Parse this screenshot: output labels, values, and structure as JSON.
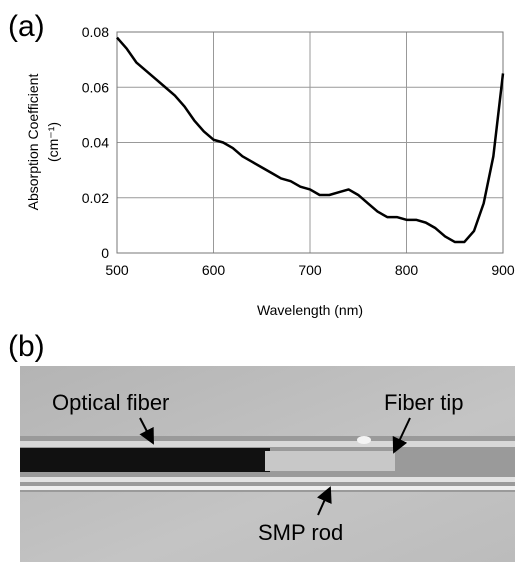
{
  "panel_labels": [
    "(a)",
    "(b)"
  ],
  "chart_data": {
    "type": "line",
    "xlabel": "Wavelength (nm)",
    "ylabel": "Absorption Coefficient",
    "ylabel_unit": "(cm⁻¹)",
    "x": [
      500,
      510,
      520,
      530,
      540,
      550,
      560,
      570,
      580,
      590,
      600,
      610,
      620,
      630,
      640,
      650,
      660,
      670,
      680,
      690,
      700,
      710,
      720,
      730,
      740,
      750,
      760,
      770,
      780,
      790,
      800,
      810,
      820,
      830,
      840,
      850,
      860,
      870,
      880,
      890,
      900
    ],
    "series": [
      {
        "name": null,
        "color": "#000000",
        "values": [
          0.078,
          0.074,
          0.069,
          0.066,
          0.063,
          0.06,
          0.057,
          0.053,
          0.048,
          0.044,
          0.041,
          0.04,
          0.038,
          0.035,
          0.033,
          0.031,
          0.029,
          0.027,
          0.026,
          0.024,
          0.023,
          0.021,
          0.021,
          0.022,
          0.023,
          0.021,
          0.018,
          0.015,
          0.013,
          0.013,
          0.012,
          0.012,
          0.011,
          0.009,
          0.006,
          0.004,
          0.004,
          0.008,
          0.018,
          0.035,
          0.065
        ]
      }
    ],
    "xlim": [
      500,
      900
    ],
    "xticks": [
      500,
      600,
      700,
      800,
      900
    ],
    "ylim": [
      0,
      0.08
    ],
    "yticks": [
      0,
      0.02,
      0.04,
      0.06,
      0.08
    ],
    "grid": true
  },
  "photo": {
    "labels": [
      "Optical fiber",
      "Fiber tip",
      "SMP rod"
    ]
  }
}
